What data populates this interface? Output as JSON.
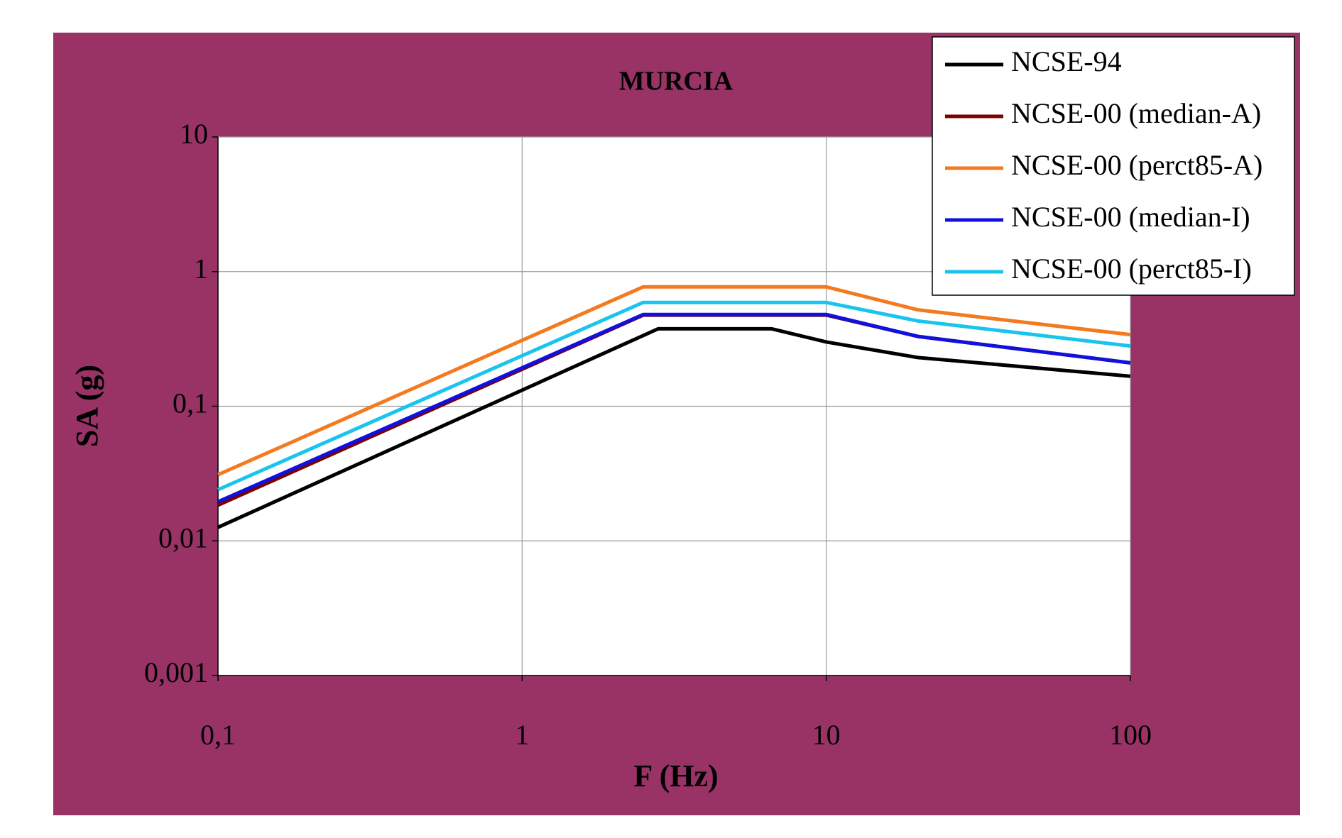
{
  "chart_data": {
    "type": "line",
    "title": "MURCIA",
    "x_label": "F (Hz)",
    "y_label": "SA (g)",
    "log_x": true,
    "log_y": true,
    "grid": true,
    "xlim": [
      0.1,
      100
    ],
    "xticks": [
      {
        "value": 0.1,
        "label": "0,1"
      },
      1,
      10,
      100
    ],
    "ylim": [
      0.001,
      10
    ],
    "yticks": [
      {
        "value": 0.001,
        "label": "0,001"
      },
      {
        "value": 0.01,
        "label": "0,01"
      },
      {
        "value": 0.1,
        "label": "0,1"
      },
      1,
      10
    ],
    "legend": "top-right",
    "series": [
      {
        "name": "NCSE-94",
        "color": "#000000",
        "x": [
          0.1,
          2.8,
          6.6,
          10,
          20,
          100
        ],
        "values": [
          0.0126,
          0.376,
          0.376,
          0.3,
          0.23,
          0.167
        ]
      },
      {
        "name": "NCSE-00 (median-A)",
        "color": "#7b0000",
        "x": [
          0.1,
          2.5,
          10,
          20,
          100
        ],
        "values": [
          0.0184,
          0.475,
          0.475,
          0.33,
          0.21
        ]
      },
      {
        "name": "NCSE-00 (perct85-A)",
        "color": "#f47a20",
        "x": [
          0.1,
          2.5,
          10,
          20,
          100
        ],
        "values": [
          0.031,
          0.77,
          0.77,
          0.52,
          0.34
        ]
      },
      {
        "name": "NCSE-00 (median-I)",
        "color": "#1010e0",
        "x": [
          0.1,
          2.5,
          10,
          20,
          100
        ],
        "values": [
          0.0195,
          0.48,
          0.48,
          0.33,
          0.21
        ]
      },
      {
        "name": "NCSE-00 (perct85-I)",
        "color": "#19c4ee",
        "x": [
          0.1,
          2.5,
          10,
          20,
          100
        ],
        "values": [
          0.024,
          0.59,
          0.59,
          0.43,
          0.28
        ]
      }
    ]
  }
}
